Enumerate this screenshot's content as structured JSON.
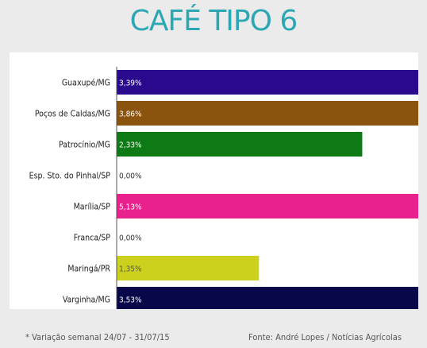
{
  "title": "CAFÉ TIPO 6",
  "footer": {
    "note": "* Variação semanal 24/07 - 31/07/15",
    "source": "Fonte: André Lopes / Notícias Agrícolas"
  },
  "chart_data": {
    "type": "bar",
    "orientation": "horizontal",
    "categories": [
      "Guaxupé/MG",
      "Poços de Caldas/MG",
      "Patrocínio/MG",
      "Esp. Sto. do Pinhal/SP",
      "Marília/SP",
      "Franca/SP",
      "Maringá/PR",
      "Varginha/MG"
    ],
    "values": [
      3.39,
      3.86,
      2.33,
      0.0,
      5.13,
      0.0,
      1.35,
      3.53
    ],
    "data_labels": [
      "3,39%",
      "3,86%",
      "2,33%",
      "0,00%",
      "5,13%",
      "0,00%",
      "1,35%",
      "3,53%"
    ],
    "colors": [
      "#2a0a8c",
      "#8a540e",
      "#0e7a16",
      "#777777",
      "#e8218c",
      "#777777",
      "#cbd11c",
      "#07074a"
    ],
    "label_colors": [
      "#ffffff",
      "#ffffff",
      "#ffffff",
      "#333333",
      "#ffffff",
      "#333333",
      "#555555",
      "#ffffff"
    ],
    "x_ticks": [
      "0.0",
      "0.5",
      "1.0",
      "1.5",
      "2.0",
      "2.5",
      "3.0",
      "3.5",
      "4.0",
      "4.5",
      "5.0"
    ],
    "xlim": [
      0,
      5.0
    ],
    "grid": false
  }
}
